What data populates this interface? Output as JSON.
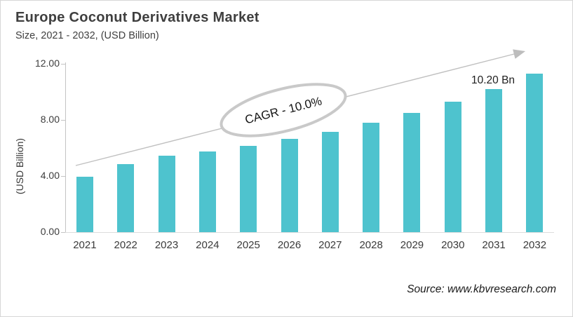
{
  "header": {
    "title": "Europe Coconut Derivatives Market",
    "subtitle": "Size, 2021 - 2032, (USD Billion)"
  },
  "annotations": {
    "cagr_label": "CAGR - 10.0%",
    "value_label_2031": "10.20 Bn"
  },
  "footer": {
    "source": "Source: www.kbvresearch.com"
  },
  "colors": {
    "bar": "#4ec3ce",
    "axis_line": "#c4c4c4",
    "baseline": "#dcdcdc",
    "arrow": "#bdbdbd",
    "ellipse_stroke": "#c9c9c9",
    "title_text": "#3f3f3f",
    "body_text": "#3a3a3a"
  },
  "chart_data": {
    "type": "bar",
    "categories": [
      "2021",
      "2022",
      "2023",
      "2024",
      "2025",
      "2026",
      "2027",
      "2028",
      "2029",
      "2030",
      "2031",
      "2032"
    ],
    "values": [
      3.97,
      4.83,
      5.45,
      5.76,
      6.15,
      6.65,
      7.15,
      7.78,
      8.5,
      9.3,
      10.2,
      11.3
    ],
    "title": "Europe Coconut Derivatives Market",
    "subtitle": "Size, 2021 - 2032, (USD Billion)",
    "xlabel": "",
    "ylabel": "(USD Billion)",
    "ylim": [
      0,
      12
    ],
    "yticks": [
      {
        "value": 0,
        "label": "0.00"
      },
      {
        "value": 4,
        "label": "4.00"
      },
      {
        "value": 8,
        "label": "8.00"
      },
      {
        "value": 12,
        "label": "12.00"
      }
    ],
    "grid": false,
    "legend": "none",
    "bar_color": "#4ec3ce",
    "annotations": [
      {
        "type": "ellipse_callout",
        "text": "CAGR - 10.0%",
        "position": "center-upper"
      },
      {
        "type": "data_label",
        "category": "2031",
        "text": "10.20 Bn"
      },
      {
        "type": "trend_arrow",
        "direction": "up-right"
      }
    ]
  }
}
